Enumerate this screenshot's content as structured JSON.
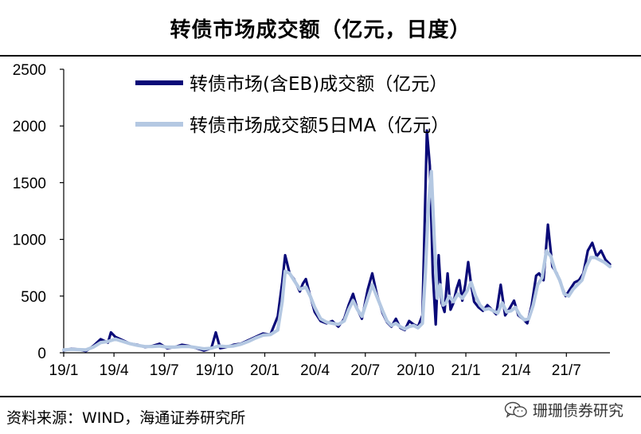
{
  "header": {
    "title": "转债市场成交额（亿元，日度）"
  },
  "footer": {
    "source": "资料来源：WIND，海通证券研究所"
  },
  "watermark": {
    "text": "珊珊债券研究",
    "icon": "wechat-icon"
  },
  "chart_data": {
    "type": "line",
    "title": "转债市场成交额（亿元，日度）",
    "xlabel": "",
    "ylabel": "",
    "ylim": [
      0,
      2500
    ],
    "yticks": [
      0,
      500,
      1000,
      1500,
      2000,
      2500
    ],
    "xticks": [
      "19/1",
      "19/4",
      "19/7",
      "19/10",
      "20/1",
      "20/4",
      "20/7",
      "20/10",
      "21/1",
      "21/4",
      "21/7"
    ],
    "xrange_months": [
      0,
      32.6
    ],
    "legend_position": "top-center",
    "grid": false,
    "series": [
      {
        "name": "转债市场(含EB)成交额（亿元）",
        "color": "#0a0a78",
        "points": [
          [
            0,
            20
          ],
          [
            0.5,
            35
          ],
          [
            1,
            30
          ],
          [
            1.5,
            15
          ],
          [
            2,
            60
          ],
          [
            2.5,
            120
          ],
          [
            3,
            90
          ],
          [
            3.2,
            180
          ],
          [
            3.5,
            140
          ],
          [
            4,
            110
          ],
          [
            4.5,
            80
          ],
          [
            5,
            70
          ],
          [
            5.5,
            50
          ],
          [
            6,
            60
          ],
          [
            6.5,
            80
          ],
          [
            7,
            40
          ],
          [
            7.5,
            50
          ],
          [
            8,
            70
          ],
          [
            8.5,
            60
          ],
          [
            9,
            40
          ],
          [
            9.5,
            20
          ],
          [
            10,
            40
          ],
          [
            10.3,
            180
          ],
          [
            10.6,
            40
          ],
          [
            11,
            50
          ],
          [
            11.5,
            70
          ],
          [
            12,
            80
          ],
          [
            12.5,
            110
          ],
          [
            13,
            140
          ],
          [
            13.5,
            170
          ],
          [
            14,
            160
          ],
          [
            14.5,
            320
          ],
          [
            14.8,
            620
          ],
          [
            15,
            860
          ],
          [
            15.3,
            700
          ],
          [
            15.6,
            650
          ],
          [
            16,
            540
          ],
          [
            16.2,
            610
          ],
          [
            16.4,
            650
          ],
          [
            16.7,
            500
          ],
          [
            17,
            360
          ],
          [
            17.4,
            280
          ],
          [
            17.8,
            260
          ],
          [
            18.2,
            280
          ],
          [
            18.6,
            230
          ],
          [
            19,
            300
          ],
          [
            19.3,
            420
          ],
          [
            19.6,
            520
          ],
          [
            19.9,
            380
          ],
          [
            20.2,
            300
          ],
          [
            20.6,
            560
          ],
          [
            20.9,
            700
          ],
          [
            21.2,
            520
          ],
          [
            21.6,
            350
          ],
          [
            21.9,
            270
          ],
          [
            22.2,
            230
          ],
          [
            22.5,
            300
          ],
          [
            22.8,
            220
          ],
          [
            23.1,
            200
          ],
          [
            23.4,
            280
          ],
          [
            23.7,
            250
          ],
          [
            24,
            230
          ],
          [
            24.3,
            330
          ],
          [
            24.5,
            1400
          ],
          [
            24.6,
            1960
          ],
          [
            24.8,
            1650
          ],
          [
            25,
            700
          ],
          [
            25.2,
            250
          ],
          [
            25.4,
            860
          ],
          [
            25.6,
            440
          ],
          [
            25.8,
            360
          ],
          [
            26,
            700
          ],
          [
            26.2,
            380
          ],
          [
            26.4,
            440
          ],
          [
            26.6,
            560
          ],
          [
            26.8,
            640
          ],
          [
            27,
            460
          ],
          [
            27.2,
            600
          ],
          [
            27.4,
            800
          ],
          [
            27.6,
            600
          ],
          [
            27.8,
            450
          ],
          [
            28.1,
            400
          ],
          [
            28.4,
            370
          ],
          [
            28.7,
            420
          ],
          [
            29,
            380
          ],
          [
            29.3,
            340
          ],
          [
            29.6,
            600
          ],
          [
            29.9,
            330
          ],
          [
            30.2,
            390
          ],
          [
            30.5,
            460
          ],
          [
            30.8,
            330
          ],
          [
            31.1,
            300
          ],
          [
            31.4,
            260
          ],
          [
            31.7,
            420
          ],
          [
            32,
            680
          ],
          [
            32.2,
            700
          ],
          [
            32.5,
            640
          ],
          [
            32.8,
            1130
          ],
          [
            33.1,
            760
          ],
          [
            33.4,
            700
          ],
          [
            33.7,
            600
          ],
          [
            34,
            500
          ],
          [
            34.3,
            560
          ],
          [
            34.6,
            620
          ],
          [
            34.9,
            640
          ],
          [
            35.2,
            700
          ],
          [
            35.5,
            900
          ],
          [
            35.8,
            970
          ],
          [
            36.1,
            850
          ],
          [
            36.4,
            900
          ],
          [
            36.7,
            820
          ],
          [
            37,
            780
          ]
        ]
      },
      {
        "name": "转债市场成交额5日MA（亿元）",
        "color": "#b4c8e2",
        "points": [
          [
            0,
            25
          ],
          [
            0.5,
            30
          ],
          [
            1,
            28
          ],
          [
            1.5,
            25
          ],
          [
            2,
            50
          ],
          [
            2.5,
            90
          ],
          [
            3,
            100
          ],
          [
            3.5,
            120
          ],
          [
            4,
            100
          ],
          [
            4.5,
            80
          ],
          [
            5,
            65
          ],
          [
            5.5,
            55
          ],
          [
            6,
            55
          ],
          [
            6.5,
            60
          ],
          [
            7,
            50
          ],
          [
            7.5,
            50
          ],
          [
            8,
            55
          ],
          [
            8.5,
            55
          ],
          [
            9,
            45
          ],
          [
            9.5,
            35
          ],
          [
            10,
            40
          ],
          [
            10.5,
            60
          ],
          [
            11,
            55
          ],
          [
            11.5,
            60
          ],
          [
            12,
            75
          ],
          [
            12.5,
            100
          ],
          [
            13,
            130
          ],
          [
            13.5,
            155
          ],
          [
            14,
            160
          ],
          [
            14.5,
            200
          ],
          [
            14.8,
            450
          ],
          [
            15,
            720
          ],
          [
            15.3,
            700
          ],
          [
            15.6,
            640
          ],
          [
            16,
            560
          ],
          [
            16.4,
            580
          ],
          [
            16.7,
            500
          ],
          [
            17,
            400
          ],
          [
            17.4,
            300
          ],
          [
            17.8,
            270
          ],
          [
            18.2,
            260
          ],
          [
            18.6,
            250
          ],
          [
            19,
            280
          ],
          [
            19.3,
            380
          ],
          [
            19.6,
            460
          ],
          [
            19.9,
            380
          ],
          [
            20.2,
            320
          ],
          [
            20.6,
            480
          ],
          [
            20.9,
            600
          ],
          [
            21.2,
            500
          ],
          [
            21.6,
            370
          ],
          [
            21.9,
            280
          ],
          [
            22.2,
            240
          ],
          [
            22.5,
            260
          ],
          [
            22.8,
            230
          ],
          [
            23.1,
            210
          ],
          [
            23.4,
            230
          ],
          [
            23.7,
            240
          ],
          [
            24,
            220
          ],
          [
            24.3,
            260
          ],
          [
            24.5,
            700
          ],
          [
            24.7,
            1300
          ],
          [
            24.9,
            1600
          ],
          [
            25.1,
            1000
          ],
          [
            25.3,
            480
          ],
          [
            25.5,
            600
          ],
          [
            25.7,
            420
          ],
          [
            25.9,
            440
          ],
          [
            26.1,
            500
          ],
          [
            26.4,
            450
          ],
          [
            26.7,
            520
          ],
          [
            27,
            480
          ],
          [
            27.3,
            540
          ],
          [
            27.6,
            620
          ],
          [
            27.9,
            500
          ],
          [
            28.2,
            420
          ],
          [
            28.5,
            380
          ],
          [
            28.8,
            390
          ],
          [
            29.1,
            370
          ],
          [
            29.4,
            350
          ],
          [
            29.7,
            440
          ],
          [
            30,
            360
          ],
          [
            30.3,
            370
          ],
          [
            30.6,
            400
          ],
          [
            30.9,
            330
          ],
          [
            31.2,
            290
          ],
          [
            31.5,
            300
          ],
          [
            31.8,
            420
          ],
          [
            32.1,
            600
          ],
          [
            32.4,
            660
          ],
          [
            32.7,
            900
          ],
          [
            33,
            850
          ],
          [
            33.3,
            720
          ],
          [
            33.6,
            640
          ],
          [
            33.9,
            520
          ],
          [
            34.2,
            500
          ],
          [
            34.5,
            560
          ],
          [
            34.8,
            600
          ],
          [
            35.1,
            640
          ],
          [
            35.4,
            760
          ],
          [
            35.7,
            840
          ],
          [
            36,
            840
          ],
          [
            36.3,
            820
          ],
          [
            36.6,
            800
          ],
          [
            37,
            760
          ]
        ]
      }
    ]
  }
}
